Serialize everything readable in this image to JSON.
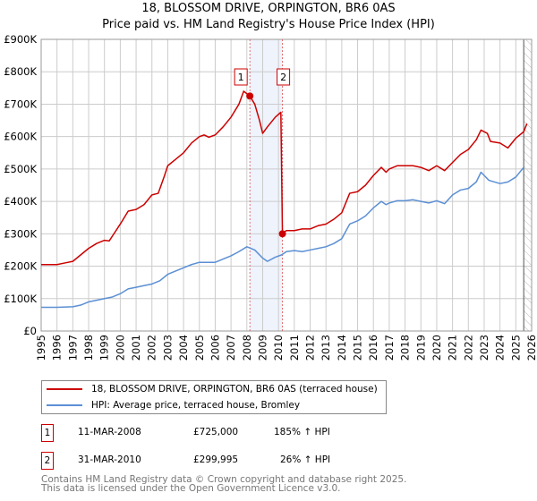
{
  "chart_data": {
    "type": "line",
    "title": "18, BLOSSOM DRIVE, ORPINGTON, BR6 0AS",
    "subtitle": "Price paid vs. HM Land Registry's House Price Index (HPI)",
    "xlim": [
      1995,
      2026
    ],
    "ylim": [
      0,
      900000
    ],
    "y_ticks": [
      {
        "v": 0,
        "l": "£0"
      },
      {
        "v": 100000,
        "l": "£100K"
      },
      {
        "v": 200000,
        "l": "£200K"
      },
      {
        "v": 300000,
        "l": "£300K"
      },
      {
        "v": 400000,
        "l": "£400K"
      },
      {
        "v": 500000,
        "l": "£500K"
      },
      {
        "v": 600000,
        "l": "£600K"
      },
      {
        "v": 700000,
        "l": "£700K"
      },
      {
        "v": 800000,
        "l": "£800K"
      },
      {
        "v": 900000,
        "l": "£900K"
      }
    ],
    "x_ticks": [
      "1995",
      "1996",
      "1997",
      "1998",
      "1999",
      "2000",
      "2001",
      "2002",
      "2003",
      "2004",
      "2005",
      "2006",
      "2007",
      "2008",
      "2009",
      "2010",
      "2011",
      "2012",
      "2013",
      "2014",
      "2015",
      "2016",
      "2017",
      "2018",
      "2019",
      "2020",
      "2021",
      "2022",
      "2023",
      "2024",
      "2025",
      "2026"
    ],
    "grid": true,
    "shaded_range": [
      2008.19,
      2010.25
    ],
    "forecast_hatch_from": 2025.5,
    "series": [
      {
        "name": "18, BLOSSOM DRIVE, ORPINGTON, BR6 0AS (terraced house)",
        "color": "#cc0000",
        "x": [
          1995,
          1996,
          1996.5,
          1997,
          1997.5,
          1998,
          1998.5,
          1999,
          1999.3,
          2000,
          2000.5,
          2001,
          2001.5,
          2002,
          2002.4,
          2002.8,
          2003,
          2003.5,
          2004,
          2004.5,
          2005,
          2005.3,
          2005.6,
          2006,
          2006.5,
          2007,
          2007.5,
          2007.8,
          2008.19,
          2008.5,
          2008.8,
          2009,
          2009.3,
          2009.8,
          2010.15,
          2010.25,
          2010.5,
          2011,
          2011.5,
          2012,
          2012.5,
          2013,
          2013.5,
          2014,
          2014.5,
          2015,
          2015.5,
          2016,
          2016.5,
          2016.8,
          2017,
          2017.5,
          2018,
          2018.5,
          2019,
          2019.5,
          2020,
          2020.5,
          2021,
          2021.5,
          2022,
          2022.5,
          2022.8,
          2023.2,
          2023.4,
          2024,
          2024.5,
          2025,
          2025.5,
          2025.7
        ],
        "y": [
          205,
          205,
          210,
          215,
          235,
          255,
          270,
          280,
          278,
          330,
          370,
          375,
          390,
          420,
          425,
          480,
          510,
          530,
          550,
          580,
          600,
          605,
          598,
          605,
          630,
          660,
          700,
          740,
          725,
          700,
          650,
          610,
          630,
          660,
          675,
          300,
          310,
          310,
          315,
          315,
          325,
          330,
          345,
          365,
          425,
          430,
          450,
          480,
          505,
          490,
          500,
          510,
          510,
          510,
          505,
          495,
          510,
          495,
          520,
          545,
          560,
          590,
          620,
          610,
          585,
          580,
          565,
          595,
          615,
          640
        ]
      },
      {
        "name": "HPI: Average price, terraced house, Bromley",
        "color": "#5b8fd4",
        "x": [
          1995,
          1996,
          1997,
          1997.5,
          1998,
          1998.5,
          1999,
          1999.5,
          2000,
          2000.5,
          2001,
          2001.5,
          2002,
          2002.5,
          2003,
          2003.5,
          2004,
          2004.5,
          2005,
          2006,
          2006.5,
          2007,
          2007.5,
          2008,
          2008.5,
          2009,
          2009.3,
          2009.8,
          2010.2,
          2010.5,
          2011,
          2011.5,
          2012,
          2012.5,
          2013,
          2013.5,
          2014,
          2014.5,
          2015,
          2015.5,
          2016,
          2016.5,
          2016.8,
          2017,
          2017.5,
          2018,
          2018.5,
          2019,
          2019.5,
          2020,
          2020.5,
          2021,
          2021.5,
          2022,
          2022.5,
          2022.8,
          2023.3,
          2024,
          2024.5,
          2025,
          2025.5
        ],
        "y": [
          73,
          73,
          75,
          80,
          90,
          95,
          100,
          105,
          115,
          130,
          135,
          140,
          145,
          155,
          175,
          185,
          195,
          205,
          212,
          212,
          222,
          232,
          245,
          260,
          250,
          225,
          215,
          228,
          235,
          245,
          248,
          245,
          250,
          255,
          260,
          270,
          285,
          330,
          340,
          355,
          380,
          400,
          390,
          395,
          402,
          402,
          405,
          400,
          395,
          402,
          393,
          420,
          435,
          440,
          460,
          490,
          465,
          455,
          460,
          475,
          505
        ]
      }
    ],
    "y_units": 1000,
    "sales": [
      {
        "label": "1",
        "x": 2008.19,
        "y": 725000
      },
      {
        "label": "2",
        "x": 2010.25,
        "y": 299995
      }
    ]
  },
  "transactions": [
    {
      "num": "1",
      "date": "11-MAR-2008",
      "price": "£725,000",
      "hpi": "185% ↑ HPI"
    },
    {
      "num": "2",
      "date": "31-MAR-2010",
      "price": "£299,995",
      "hpi": "26% ↑ HPI"
    }
  ],
  "footer": {
    "line1": "Contains HM Land Registry data © Crown copyright and database right 2025.",
    "line2": "This data is licensed under the Open Government Licence v3.0."
  }
}
